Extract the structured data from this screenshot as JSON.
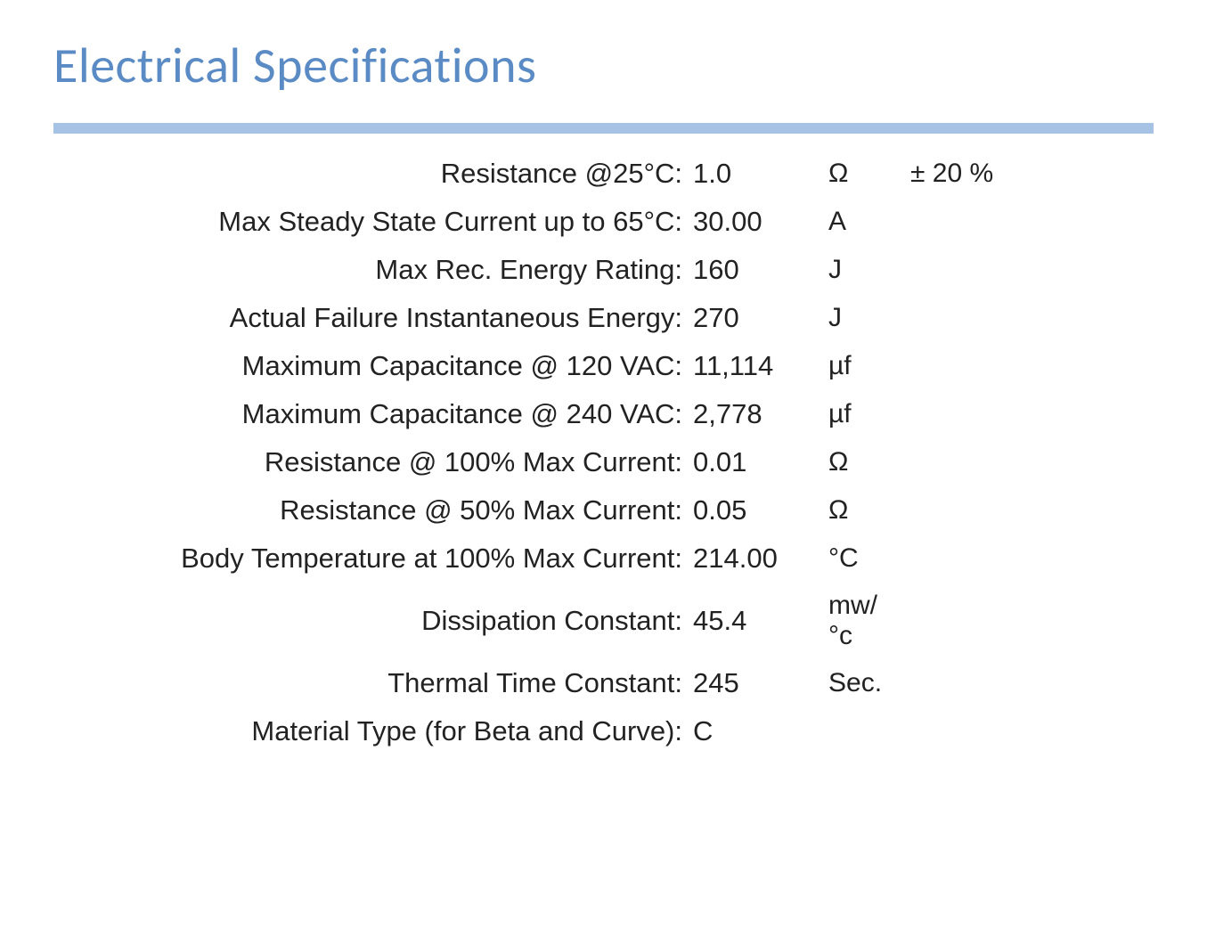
{
  "title": "Electrical Specifications",
  "colors": {
    "title": "#5b8bc4",
    "rule": "#a6c2e4",
    "text": "#222222",
    "background": "#ffffff"
  },
  "typography": {
    "title_fontsize_pt": 42,
    "body_fontsize_pt": 24,
    "title_font": "Calibri",
    "body_font": "Verdana"
  },
  "table": {
    "type": "table",
    "columns": [
      "label",
      "value",
      "unit",
      "extra"
    ],
    "rows": [
      {
        "label": "Resistance @25°C:",
        "value": "1.0",
        "unit": "Ω",
        "extra": "± 20 %"
      },
      {
        "label": "Max Steady State Current up to 65°C:",
        "value": "30.00",
        "unit": "A",
        "extra": ""
      },
      {
        "label": "Max Rec. Energy Rating:",
        "value": "160",
        "unit": "J",
        "extra": ""
      },
      {
        "label": "Actual Failure Instantaneous Energy:",
        "value": "270",
        "unit": "J",
        "extra": ""
      },
      {
        "label": "Maximum Capacitance @ 120 VAC:",
        "value": "11,114",
        "unit": "µf",
        "extra": ""
      },
      {
        "label": "Maximum Capacitance @ 240 VAC:",
        "value": "2,778",
        "unit": "µf",
        "extra": ""
      },
      {
        "label": "Resistance @ 100% Max Current:",
        "value": "0.01",
        "unit": "Ω",
        "extra": ""
      },
      {
        "label": "Resistance @ 50% Max Current:",
        "value": "0.05",
        "unit": "Ω",
        "extra": ""
      },
      {
        "label": "Body Temperature at 100% Max Current:",
        "value": "214.00",
        "unit": "°C",
        "extra": ""
      },
      {
        "label": "Dissipation Constant:",
        "value": "45.4",
        "unit": "mw/°c",
        "extra": ""
      },
      {
        "label": "Thermal Time Constant:",
        "value": "245",
        "unit": "Sec.",
        "extra": ""
      },
      {
        "label": "Material Type (for Beta and Curve):",
        "value": "C",
        "unit": "",
        "extra": ""
      }
    ]
  }
}
